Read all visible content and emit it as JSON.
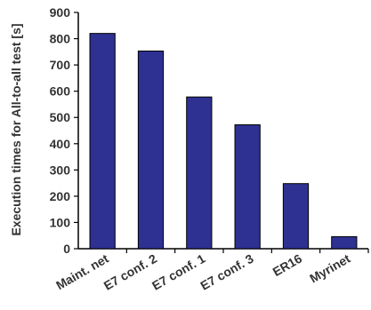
{
  "chart_data": {
    "type": "bar",
    "title": "",
    "xlabel": "",
    "ylabel": "Execution times  for All-to-all test [s]",
    "categories": [
      "Maint. net",
      "E7 conf. 2",
      "E7 conf. 1",
      "E7 conf. 3",
      "ER16",
      "Myrinet"
    ],
    "values": [
      820,
      753,
      578,
      472,
      248,
      46
    ],
    "ylim": [
      0,
      900
    ],
    "yticks": [
      0,
      100,
      200,
      300,
      400,
      500,
      600,
      700,
      800,
      900
    ],
    "grid": false,
    "legend": "none",
    "bar_color": "#2e3192",
    "bar_edge_color": "#000000"
  }
}
